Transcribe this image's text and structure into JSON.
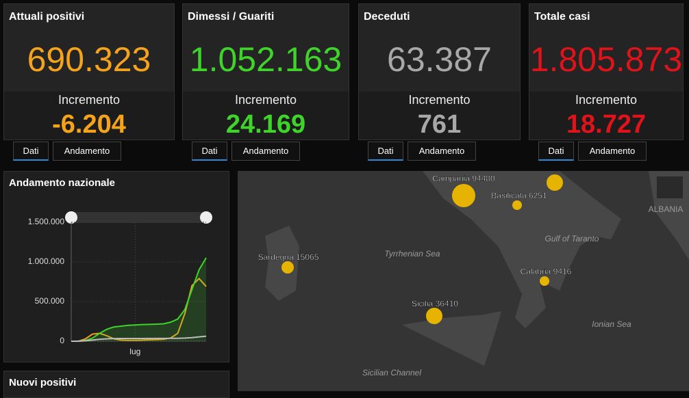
{
  "cards": [
    {
      "title": "Attuali positivi",
      "value": "690.323",
      "label": "Incremento",
      "increment": "-6.204",
      "color": "#f5a31a",
      "tabs": [
        "Dati",
        "Andamento"
      ]
    },
    {
      "title": "Dimessi / Guariti",
      "value": "1.052.163",
      "label": "Incremento",
      "increment": "24.169",
      "color": "#3fd42a",
      "tabs": [
        "Dati",
        "Andamento"
      ]
    },
    {
      "title": "Deceduti",
      "value": "63.387",
      "label": "Incremento",
      "increment": "761",
      "color": "#a8a8a8",
      "tabs": [
        "Dati",
        "Andamento"
      ]
    },
    {
      "title": "Totale casi",
      "value": "1.805.873",
      "label": "Incremento",
      "increment": "18.727",
      "color": "#e0131a",
      "tabs": [
        "Dati",
        "Andamento"
      ]
    }
  ],
  "chart_data": {
    "type": "line",
    "title": "Andamento nazionale",
    "categories": [
      null,
      null,
      null,
      null,
      null,
      null,
      null,
      null,
      null,
      "lug",
      null,
      null,
      null,
      null,
      null,
      null,
      null,
      null,
      null,
      null
    ],
    "series": [
      {
        "color": "#f5a31a",
        "values": [
          0,
          0,
          30000,
          90000,
          100000,
          70000,
          30000,
          15000,
          12000,
          12000,
          14000,
          18000,
          20000,
          25000,
          40000,
          100000,
          350000,
          700000,
          790000,
          690323
        ]
      },
      {
        "color": "#3fd42a",
        "values": [
          0,
          2000,
          10000,
          40000,
          100000,
          150000,
          180000,
          190000,
          200000,
          205000,
          210000,
          212000,
          215000,
          220000,
          240000,
          280000,
          400000,
          650000,
          900000,
          1052163
        ]
      },
      {
        "color": "#bdbdbd",
        "values": [
          0,
          0,
          5000,
          15000,
          25000,
          30000,
          33000,
          34000,
          35000,
          35000,
          35000,
          35500,
          36000,
          36000,
          36500,
          37000,
          40000,
          45000,
          55000,
          63387
        ]
      }
    ],
    "ylim": [
      0,
      1500000
    ],
    "yticks": [
      0,
      {
        "value": 500000,
        "label": "500.000"
      },
      {
        "value": 1000000,
        "label": "1.000.000"
      },
      {
        "value": 1500000,
        "label": "1.500.000"
      }
    ],
    "grid": true
  },
  "map": {
    "regions": [
      "Campania 94480",
      "Basilicata 6251",
      "Sardegna 15065",
      "Calabria 9416",
      "Sicilia 36410"
    ],
    "places": [
      "Tyrrhenian Sea",
      "Gulf of Taranto",
      "Ionian Sea",
      "Sicilian Channel",
      "ALBANIA"
    ]
  },
  "bottom_panel": {
    "title": "Nuovi positivi"
  }
}
